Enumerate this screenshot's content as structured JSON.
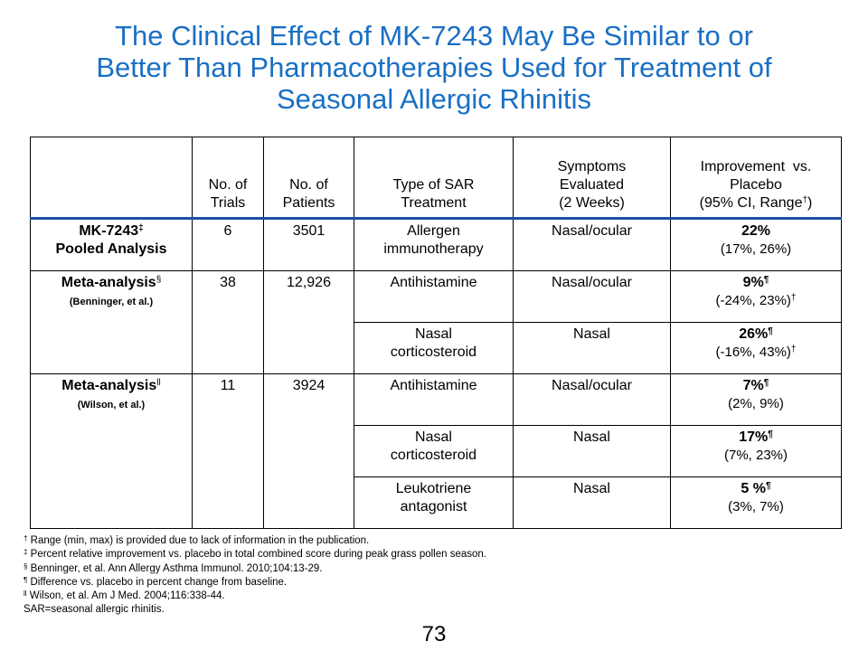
{
  "title": {
    "line1": "The Clinical Effect of MK-7243 May Be Similar to or",
    "line2": "Better Than Pharmacotherapies Used for Treatment of",
    "line3": "Seasonal Allergic Rhinitis"
  },
  "table": {
    "headers": {
      "trials_1": "No. of",
      "trials_2": "Trials",
      "patients_1": "No. of",
      "patients_2": "Patients",
      "type_1": "Type of SAR",
      "type_2": "Treatment",
      "symptoms_1": "Symptoms",
      "symptoms_2": "Evaluated",
      "symptoms_3": "(2 Weeks)",
      "improvement_1": "Improvement  vs.",
      "improvement_2": "Placebo",
      "improvement_3": "(95% CI, Range",
      "improvement_3_sup": "†",
      "improvement_3_end": ")"
    },
    "mk": {
      "name_1": "MK-7243",
      "name_1_sup": "‡",
      "name_2": "Pooled Analysis",
      "trials": "6",
      "patients": "3501",
      "type_1": "Allergen",
      "type_2": "immunotherapy",
      "symptoms": "Nasal/ocular",
      "pct": "22%",
      "ci": "(17%, 26%)"
    },
    "benninger": {
      "name": "Meta-analysis",
      "name_sup": "§",
      "author": "(Benninger, et al.)",
      "trials": "38",
      "patients": "12,926",
      "row1": {
        "type": "Antihistamine",
        "symptoms": "Nasal/ocular",
        "pct": "9%",
        "pct_sup": "¶",
        "ci": "(-24%, 23%)",
        "ci_sup": "†"
      },
      "row2": {
        "type_1": "Nasal",
        "type_2": "corticosteroid",
        "symptoms": "Nasal",
        "pct": "26%",
        "pct_sup": "¶",
        "ci": "(-16%, 43%)",
        "ci_sup": "†"
      }
    },
    "wilson": {
      "name": "Meta-analysis",
      "name_sup": "ll",
      "author": "(Wilson, et al.)",
      "trials": "11",
      "patients": "3924",
      "row1": {
        "type": "Antihistamine",
        "symptoms": "Nasal/ocular",
        "pct": "7%",
        "pct_sup": "¶",
        "ci": "(2%, 9%)"
      },
      "row2": {
        "type_1": "Nasal",
        "type_2": "corticosteroid",
        "symptoms": "Nasal",
        "pct": "17%",
        "pct_sup": "¶",
        "ci": "(7%, 23%)"
      },
      "row3": {
        "type_1": "Leukotriene",
        "type_2": "antagonist",
        "symptoms": "Nasal",
        "pct": "5 %",
        "pct_sup": "¶",
        "ci": "(3%, 7%)"
      }
    }
  },
  "footnotes": [
    {
      "mark": "†",
      "text": " Range (min, max) is provided due to lack of information in the publication."
    },
    {
      "mark": "‡",
      "text": " Percent relative improvement vs. placebo in total combined score during peak grass pollen season."
    },
    {
      "mark": "§",
      "text": " Benninger, et al. Ann Allergy Asthma Immunol. 2010;104:13-29."
    },
    {
      "mark": "¶",
      "text": " Difference vs. placebo in percent change from baseline."
    },
    {
      "mark": "ll",
      "text": " Wilson, et al. Am J Med. 2004;116:338-44."
    },
    {
      "mark": "",
      "text": "SAR=seasonal allergic rhinitis."
    }
  ],
  "page_number": "73"
}
